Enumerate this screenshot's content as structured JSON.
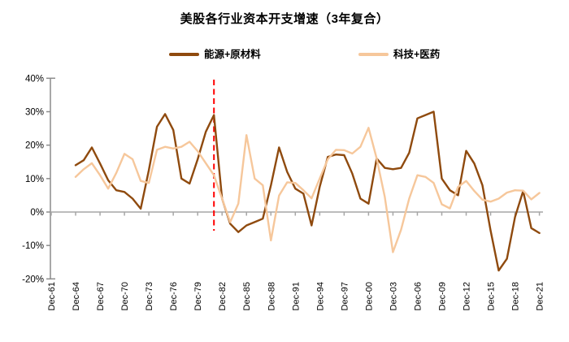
{
  "title": "美股各行业资本开支增速（3年复合）",
  "legend": {
    "energy_label": "能源+原材料",
    "tech_label": "科技+医药"
  },
  "colors": {
    "energy_line": "#8F4A0E",
    "tech_line": "#F6C79B",
    "axis_gray": "#8C8C8C",
    "zero_line_gray": "#A6A6A6",
    "reference_line_red": "#FF0000",
    "text_black": "#000000"
  },
  "chart_data": {
    "type": "line",
    "title": "美股各行业资本开支增速（3年复合）",
    "xlabel": "",
    "ylabel": "",
    "y_unit": "%",
    "ylim": [
      -20,
      40
    ],
    "grid": false,
    "legend_position": "top",
    "y_tick_values": [
      40,
      30,
      20,
      10,
      0,
      -10,
      -20
    ],
    "y_tick_labels": [
      "40%",
      "30%",
      "20%",
      "10%",
      "0%",
      "-10%",
      "-20%"
    ],
    "x_tick_years": [
      1961,
      1964,
      1967,
      1970,
      1973,
      1976,
      1979,
      1982,
      1985,
      1988,
      1991,
      1994,
      1997,
      2000,
      2003,
      2006,
      2009,
      2012,
      2015,
      2018,
      2021
    ],
    "x_tick_labels": [
      "Dec-61",
      "Dec-64",
      "Dec-67",
      "Dec-70",
      "Dec-73",
      "Dec-76",
      "Dec-79",
      "Dec-82",
      "Dec-85",
      "Dec-88",
      "Dec-91",
      "Dec-94",
      "Dec-97",
      "Dec-00",
      "Dec-03",
      "Dec-06",
      "Dec-09",
      "Dec-12",
      "Dec-15",
      "Dec-18",
      "Dec-21"
    ],
    "years": [
      1964,
      1965,
      1966,
      1967,
      1968,
      1969,
      1970,
      1971,
      1972,
      1973,
      1974,
      1975,
      1976,
      1977,
      1978,
      1979,
      1980,
      1981,
      1982,
      1983,
      1984,
      1985,
      1986,
      1987,
      1988,
      1989,
      1990,
      1991,
      1992,
      1993,
      1994,
      1995,
      1996,
      1997,
      1998,
      1999,
      2000,
      2001,
      2002,
      2003,
      2004,
      2005,
      2006,
      2007,
      2008,
      2009,
      2010,
      2011,
      2012,
      2013,
      2014,
      2015,
      2016,
      2017,
      2018,
      2019,
      2020,
      2021
    ],
    "series": [
      {
        "name": "能源+原材料",
        "color": "#8F4A0E",
        "values": [
          14,
          15.5,
          19.3,
          14.5,
          9.5,
          6.5,
          6,
          4,
          1,
          12.5,
          25.5,
          29.3,
          24.5,
          10,
          8.5,
          15.8,
          24,
          29,
          4,
          -3.5,
          -6,
          -4,
          -3,
          -2,
          8,
          19.3,
          12,
          7,
          5.5,
          -4,
          7.5,
          16.5,
          17.2,
          17,
          11.5,
          4,
          2.5,
          16,
          13.2,
          12.8,
          13.2,
          17.7,
          28,
          29,
          30,
          10,
          6.5,
          5,
          18.3,
          14.5,
          8,
          -5.5,
          -17.5,
          -14,
          -1.5,
          6.3,
          -4.8,
          -6.3
        ]
      },
      {
        "name": "科技+医药",
        "color": "#F6C79B",
        "values": [
          10.5,
          12.8,
          14.6,
          11,
          7,
          11.7,
          17.4,
          15.8,
          9.3,
          8.7,
          18.6,
          19.5,
          19,
          19.5,
          21,
          18.2,
          14.6,
          11,
          4,
          -3,
          2.5,
          23,
          10,
          8,
          -8.5,
          4.9,
          8.9,
          8.7,
          6.5,
          4.1,
          10,
          15.8,
          18.6,
          18.5,
          17.5,
          19.5,
          25.2,
          16,
          4.5,
          -12,
          -5.3,
          4,
          11,
          10.5,
          8.7,
          2.3,
          1.1,
          7.5,
          9.3,
          6.3,
          3.7,
          3.1,
          4,
          5.8,
          6.5,
          6.4,
          3.8,
          5.7
        ]
      }
    ],
    "annotation": {
      "type": "vertical_dashed_line",
      "year": 1981,
      "color": "#FF0000"
    }
  }
}
